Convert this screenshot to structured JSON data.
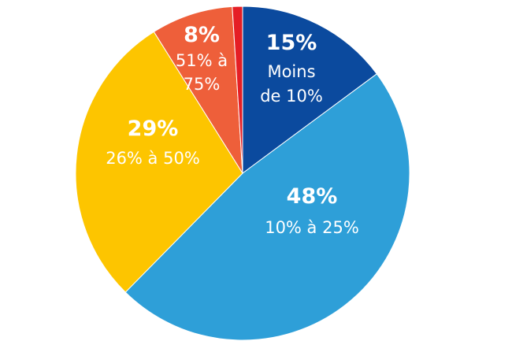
{
  "chart_data": {
    "type": "pie",
    "start": "top",
    "direction": "clockwise",
    "slices": [
      {
        "value": 15,
        "label": "15%",
        "desc": [
          "Moins",
          "de 10%"
        ],
        "color": "#0b4a9e"
      },
      {
        "value": 48,
        "label": "48%",
        "desc": [
          "10% à 25%"
        ],
        "color": "#2e9fd8"
      },
      {
        "value": 29,
        "label": "29%",
        "desc": [
          "26% à 50%"
        ],
        "color": "#fdc500"
      },
      {
        "value": 8,
        "label": "8%",
        "desc": [
          "51% à",
          "75%"
        ],
        "color": "#ee5f3a"
      },
      {
        "value": 1,
        "label": "",
        "desc": [],
        "color": "#e51e25"
      }
    ]
  }
}
